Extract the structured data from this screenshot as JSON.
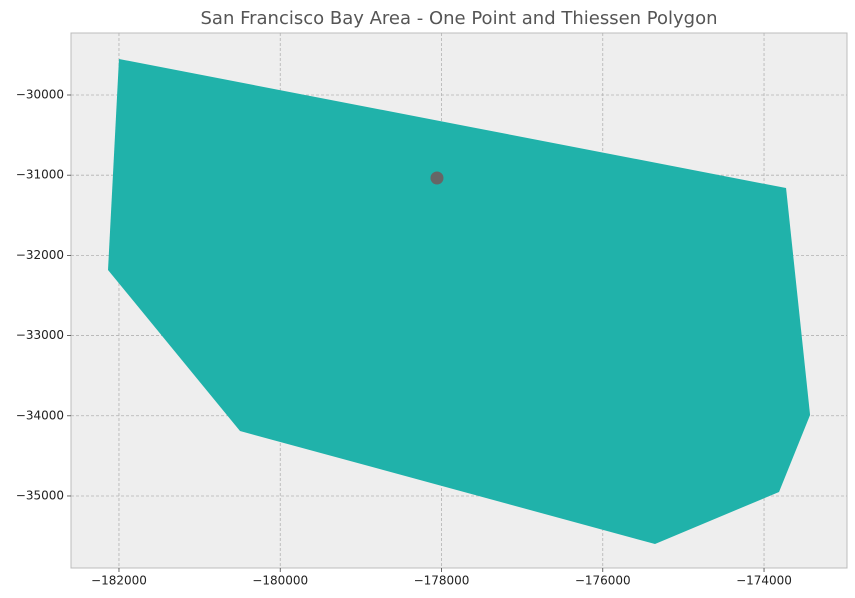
{
  "chart_data": {
    "type": "polygon",
    "title": "San Francisco Bay Area - One Point and Thiessen Polygon",
    "polygon": {
      "x": [
        -182000,
        -173727,
        -173429,
        -173814,
        -175352,
        -180499,
        -182136
      ],
      "y": [
        -29551,
        -31160,
        -33990,
        -34950,
        -35599,
        -34190,
        -32182
      ],
      "color": "#20b2aa"
    },
    "points": {
      "x": [
        -178056
      ],
      "y": [
        -31035
      ],
      "color": "#666666"
    },
    "xlim": [
      -182595,
      -172971
    ],
    "ylim": [
      -35898,
      -29227
    ],
    "xticks": [
      {
        "value": -182000,
        "label": "−182000"
      },
      {
        "value": -180000,
        "label": "−180000"
      },
      {
        "value": -178000,
        "label": "−178000"
      },
      {
        "value": -176000,
        "label": "−176000"
      },
      {
        "value": -174000,
        "label": "−174000"
      }
    ],
    "yticks": [
      {
        "value": -30000,
        "label": "−30000"
      },
      {
        "value": -31000,
        "label": "−31000"
      },
      {
        "value": -32000,
        "label": "−32000"
      },
      {
        "value": -33000,
        "label": "−33000"
      },
      {
        "value": -34000,
        "label": "−34000"
      },
      {
        "value": -35000,
        "label": "−35000"
      }
    ],
    "grid": true
  }
}
